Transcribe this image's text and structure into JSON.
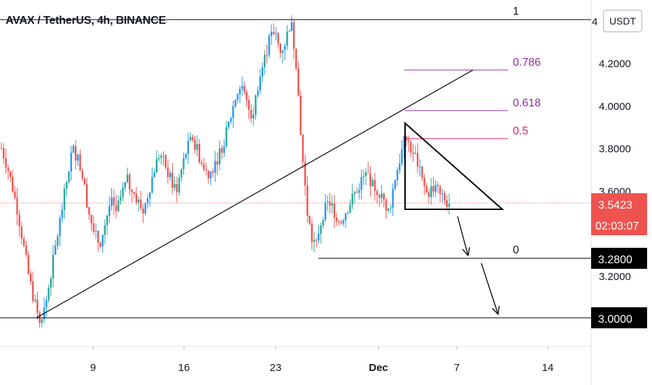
{
  "header": {
    "title": "AVAX / TetherUS, 4h, BINANCE",
    "currency_button": "USDT"
  },
  "colors": {
    "bull": "#26a69a",
    "bull_blue": "#2196f3",
    "bear": "#ef5350",
    "fib_purple": "#9c27b0",
    "fib_red": "#e91e63",
    "price_badge": "#ef5350",
    "axis_text": "#131722",
    "line": "#000000"
  },
  "chart_data": {
    "type": "candlestick",
    "y_axis": {
      "ticks": [
        "4.2000",
        "4.0000",
        "3.8000",
        "3.6000",
        "3.2000"
      ],
      "range": [
        2.88,
        4.45
      ],
      "partial_top_label": "4"
    },
    "x_axis": {
      "ticks": [
        "9",
        "16",
        "23",
        "Dec",
        "7",
        "14"
      ]
    },
    "current_price": "3.5423",
    "countdown": "02:03:07",
    "levels": [
      {
        "label": "3.2800",
        "value": 3.28
      },
      {
        "label": "3.0000",
        "value": 3.0
      }
    ],
    "fibonacci": [
      {
        "label": "1",
        "value": 4.41
      },
      {
        "label": "0.786",
        "value": 4.165
      },
      {
        "label": "0.618",
        "value": 3.975
      },
      {
        "label": "0.5",
        "value": 3.84
      },
      {
        "label": "0",
        "value": 3.28
      }
    ],
    "price_path": [
      3.8,
      3.72,
      3.62,
      3.5,
      3.35,
      3.2,
      3.08,
      3.0,
      3.05,
      3.2,
      3.35,
      3.5,
      3.65,
      3.8,
      3.75,
      3.65,
      3.5,
      3.4,
      3.35,
      3.45,
      3.55,
      3.5,
      3.58,
      3.65,
      3.6,
      3.55,
      3.5,
      3.6,
      3.7,
      3.78,
      3.72,
      3.65,
      3.6,
      3.7,
      3.8,
      3.85,
      3.78,
      3.7,
      3.68,
      3.72,
      3.78,
      3.85,
      3.95,
      4.05,
      4.1,
      4.0,
      3.95,
      4.1,
      4.2,
      4.3,
      4.35,
      4.25,
      4.3,
      4.4,
      4.2,
      3.8,
      3.5,
      3.35,
      3.4,
      3.5,
      3.55,
      3.5,
      3.45,
      3.5,
      3.55,
      3.6,
      3.65,
      3.68,
      3.62,
      3.6,
      3.55,
      3.5,
      3.65,
      3.75,
      3.85,
      3.8,
      3.75,
      3.65,
      3.58,
      3.62,
      3.6,
      3.55,
      3.54
    ]
  }
}
